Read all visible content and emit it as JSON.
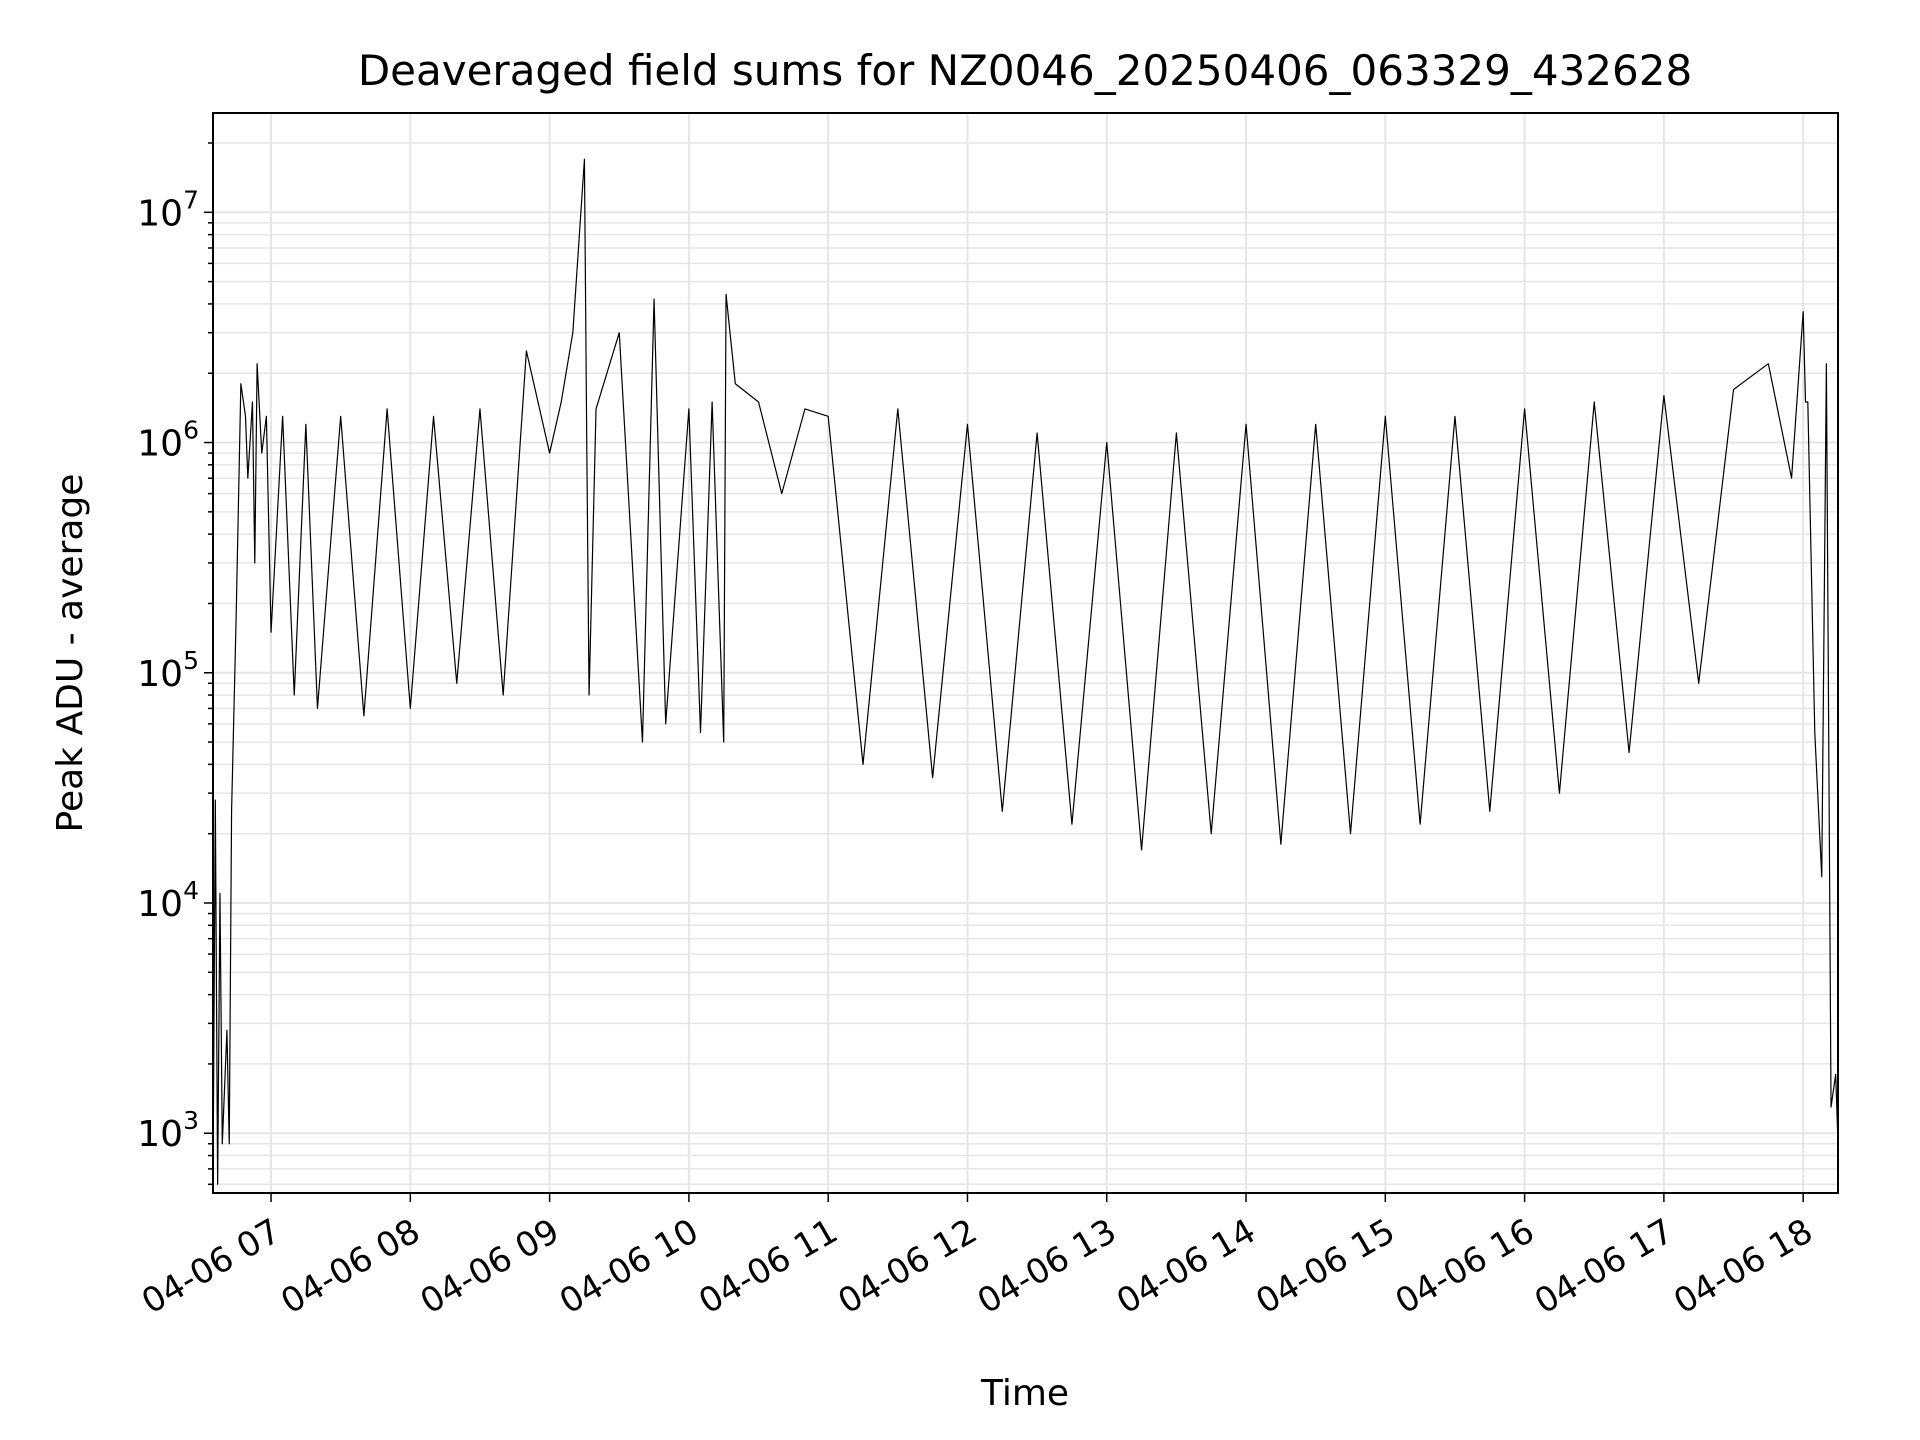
{
  "colors": {
    "series": "#000000",
    "grid": "#e6e6e6",
    "axes": "#000000",
    "background": "#ffffff"
  },
  "chart_data": {
    "type": "line",
    "title": "Deaveraged field sums for NZ0046_20250406_063329_432628",
    "xlabel": "Time",
    "ylabel": "Peak ADU - average",
    "yscale": "log",
    "ylim": [
      550,
      27000000
    ],
    "xlim": [
      "2025-04-06 06:35",
      "2025-04-06 18:15"
    ],
    "grid": true,
    "legend": "none",
    "x_tick_labels": [
      "04-06 07",
      "04-06 08",
      "04-06 09",
      "04-06 10",
      "04-06 11",
      "04-06 12",
      "04-06 13",
      "04-06 14",
      "04-06 15",
      "04-06 16",
      "04-06 17",
      "04-06 18"
    ],
    "y_ticks": [
      {
        "base": "10",
        "exp": "3",
        "value": 1000
      },
      {
        "base": "10",
        "exp": "4",
        "value": 10000
      },
      {
        "base": "10",
        "exp": "5",
        "value": 100000
      },
      {
        "base": "10",
        "exp": "6",
        "value": 1000000
      },
      {
        "base": "10",
        "exp": "7",
        "value": 10000000
      }
    ],
    "series": [
      {
        "x": [
          "06:35",
          "06:36",
          "06:37",
          "06:38",
          "06:39",
          "06:41",
          "06:42",
          "06:43",
          "06:45",
          "06:47",
          "06:49",
          "06:50",
          "06:52",
          "06:53",
          "06:54",
          "06:56",
          "06:58",
          "07:00",
          "07:05",
          "07:10",
          "07:15",
          "07:20",
          "07:30",
          "07:40",
          "07:50",
          "08:00",
          "08:10",
          "08:20",
          "08:30",
          "08:40",
          "08:50",
          "09:00",
          "09:05",
          "09:10",
          "09:15",
          "09:16",
          "09:17",
          "09:20",
          "09:30",
          "09:40",
          "09:45",
          "09:50",
          "10:00",
          "10:05",
          "10:10",
          "10:15",
          "10:16",
          "10:20",
          "10:30",
          "10:40",
          "10:50",
          "11:00",
          "11:15",
          "11:30",
          "11:45",
          "12:00",
          "12:15",
          "12:30",
          "12:45",
          "13:00",
          "13:15",
          "13:30",
          "13:45",
          "14:00",
          "14:15",
          "14:30",
          "14:45",
          "15:00",
          "15:15",
          "15:30",
          "15:45",
          "16:00",
          "16:15",
          "16:30",
          "16:45",
          "17:00",
          "17:15",
          "17:30",
          "17:45",
          "17:55",
          "18:00",
          "18:01",
          "18:02",
          "18:05",
          "18:08",
          "18:10",
          "18:12",
          "18:14",
          "18:15"
        ],
        "y": [
          600,
          28000,
          600,
          11000,
          900,
          2800,
          900,
          25000,
          180000,
          1800000,
          1300000,
          700000,
          1500000,
          300000,
          2200000,
          900000,
          1300000,
          150000,
          1300000,
          80000,
          1200000,
          70000,
          1300000,
          65000,
          1400000,
          70000,
          1300000,
          90000,
          1400000,
          80000,
          2500000,
          900000,
          1500000,
          3000000,
          17000000,
          1000000,
          80000,
          1400000,
          3000000,
          50000,
          4200000,
          60000,
          1400000,
          55000,
          1500000,
          50000,
          4400000,
          1800000,
          1500000,
          600000,
          1400000,
          1300000,
          40000,
          1400000,
          35000,
          1200000,
          25000,
          1100000,
          22000,
          1000000,
          17000,
          1100000,
          20000,
          1200000,
          18000,
          1200000,
          20000,
          1300000,
          22000,
          1300000,
          25000,
          1400000,
          30000,
          1500000,
          45000,
          1600000,
          90000,
          1700000,
          2200000,
          700000,
          3700000,
          1500000,
          1500000,
          55000,
          13000,
          2200000,
          1300,
          1800,
          900
        ]
      }
    ]
  }
}
